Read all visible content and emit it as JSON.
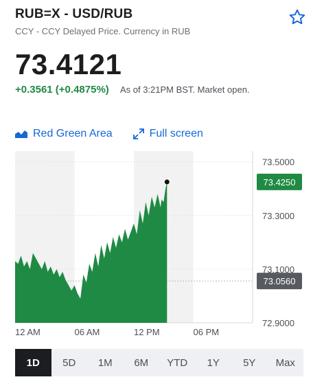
{
  "header": {
    "title": "RUB=X - USD/RUB",
    "subtitle": "CCY - CCY Delayed Price. Currency in RUB"
  },
  "quote": {
    "price": "73.4121",
    "change": "+0.3561 (+0.4875%)",
    "as_of": "As of 3:21PM BST. Market open."
  },
  "controls": {
    "chart_style_label": "Red Green Area",
    "fullscreen_label": "Full screen"
  },
  "periods": [
    {
      "label": "1D",
      "active": true
    },
    {
      "label": "5D",
      "active": false
    },
    {
      "label": "1M",
      "active": false
    },
    {
      "label": "6M",
      "active": false
    },
    {
      "label": "YTD",
      "active": false
    },
    {
      "label": "1Y",
      "active": false
    },
    {
      "label": "5Y",
      "active": false
    },
    {
      "label": "Max",
      "active": false
    }
  ],
  "colors": {
    "area_fill": "#1f8a43",
    "shade": "#f2f2f2",
    "current_badge": "#1f8a43",
    "prev_close_badge": "#575b61",
    "link": "#1568d6"
  },
  "chart_data": {
    "type": "area",
    "x_axis": {
      "range_hours": [
        0,
        24
      ],
      "ticks": [
        {
          "hour": 0,
          "label": "12 AM"
        },
        {
          "hour": 6,
          "label": "06 AM"
        },
        {
          "hour": 12,
          "label": "12 PM"
        },
        {
          "hour": 18,
          "label": "06 PM"
        }
      ]
    },
    "y_axis": {
      "range": [
        72.9,
        73.54
      ],
      "ticks": [
        73.5,
        73.3,
        73.1,
        72.9
      ],
      "tick_labels": [
        "73.5000",
        "73.3000",
        "73.1000",
        "72.9000"
      ]
    },
    "current": {
      "value": 73.425,
      "label": "73.4250"
    },
    "previous_close": {
      "value": 73.056,
      "label": "73.0560"
    },
    "shaded_hours": [
      [
        0,
        6
      ],
      [
        12,
        18
      ]
    ],
    "series": [
      {
        "x": [
          0,
          0.3,
          0.6,
          0.9,
          1.2,
          1.5,
          1.8,
          2.1,
          2.4,
          2.7,
          3.0,
          3.3,
          3.6,
          3.9,
          4.2,
          4.5,
          4.8,
          5.1,
          5.4,
          5.7,
          6.0,
          6.3,
          6.6,
          6.9,
          7.2,
          7.5,
          7.8,
          8.1,
          8.4,
          8.7,
          9.0,
          9.3,
          9.6,
          9.9,
          10.2,
          10.5,
          10.8,
          11.1,
          11.4,
          11.7,
          12.0,
          12.3,
          12.6,
          12.9,
          13.2,
          13.5,
          13.8,
          14.1,
          14.4,
          14.7,
          14.8,
          15.0,
          15.2,
          15.35
        ],
        "y": [
          73.13,
          73.12,
          73.15,
          73.11,
          73.13,
          73.1,
          73.16,
          73.14,
          73.12,
          73.1,
          73.13,
          73.09,
          73.11,
          73.08,
          73.1,
          73.07,
          73.09,
          73.06,
          73.04,
          73.02,
          73.04,
          73.01,
          72.99,
          73.08,
          73.05,
          73.12,
          73.09,
          73.16,
          73.11,
          73.19,
          73.14,
          73.2,
          73.16,
          73.22,
          73.18,
          73.23,
          73.2,
          73.25,
          73.21,
          73.24,
          73.27,
          73.23,
          73.32,
          73.27,
          73.35,
          73.3,
          73.37,
          73.33,
          73.38,
          73.33,
          73.36,
          73.35,
          73.4,
          73.425
        ]
      }
    ]
  }
}
